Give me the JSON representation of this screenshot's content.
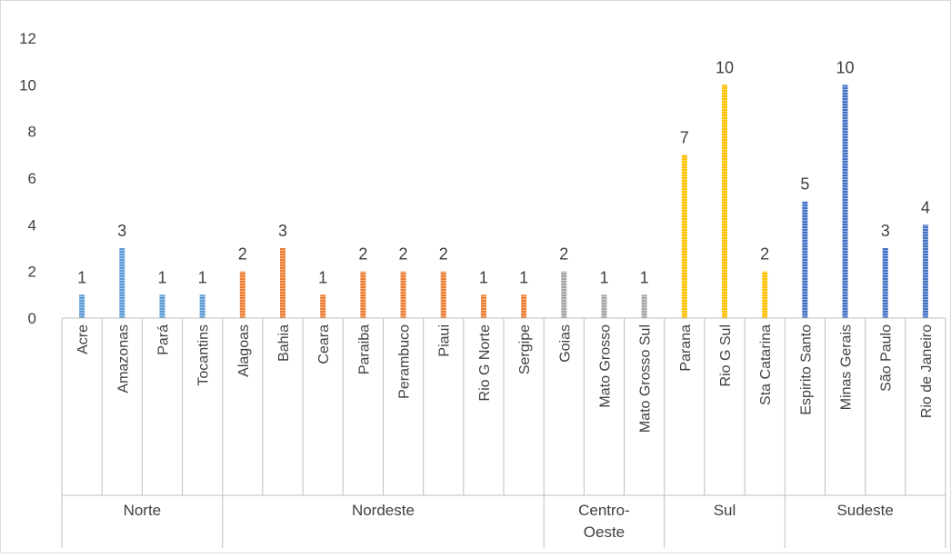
{
  "chart_data": {
    "type": "bar",
    "ylim": [
      0,
      12
    ],
    "yticks": [
      0,
      2,
      4,
      6,
      8,
      10,
      12
    ],
    "grid": false,
    "legend": "none",
    "data_labels": true,
    "groups": [
      {
        "name": "Norte",
        "color": "#5B9BD5",
        "categories": [
          "Acre",
          "Amazonas",
          "Pará",
          "Tocantins"
        ],
        "values": [
          1,
          3,
          1,
          1
        ]
      },
      {
        "name": "Nordeste",
        "color": "#ED7D31",
        "categories": [
          "Alagoas",
          "Bahia",
          "Ceara",
          "Paraiba",
          "Perambuco",
          "Piaui",
          "Rio G Norte",
          "Sergipe"
        ],
        "values": [
          2,
          3,
          1,
          2,
          2,
          2,
          1,
          1
        ]
      },
      {
        "name": "Centro-Oeste",
        "color": "#A5A5A5",
        "categories": [
          "Goias",
          "Mato Grosso",
          "Mato Grosso Sul"
        ],
        "values": [
          2,
          1,
          1
        ]
      },
      {
        "name": "Sul",
        "color": "#FFC000",
        "categories": [
          "Parana",
          "Rio G Sul",
          "Sta Catarina"
        ],
        "values": [
          7,
          10,
          2
        ]
      },
      {
        "name": "Sudeste",
        "color": "#4472C4",
        "categories": [
          "Espirito Santo",
          "Minas Gerais",
          "São Paulo",
          "Rio de Janeiro"
        ],
        "values": [
          5,
          10,
          3,
          4
        ]
      }
    ]
  }
}
